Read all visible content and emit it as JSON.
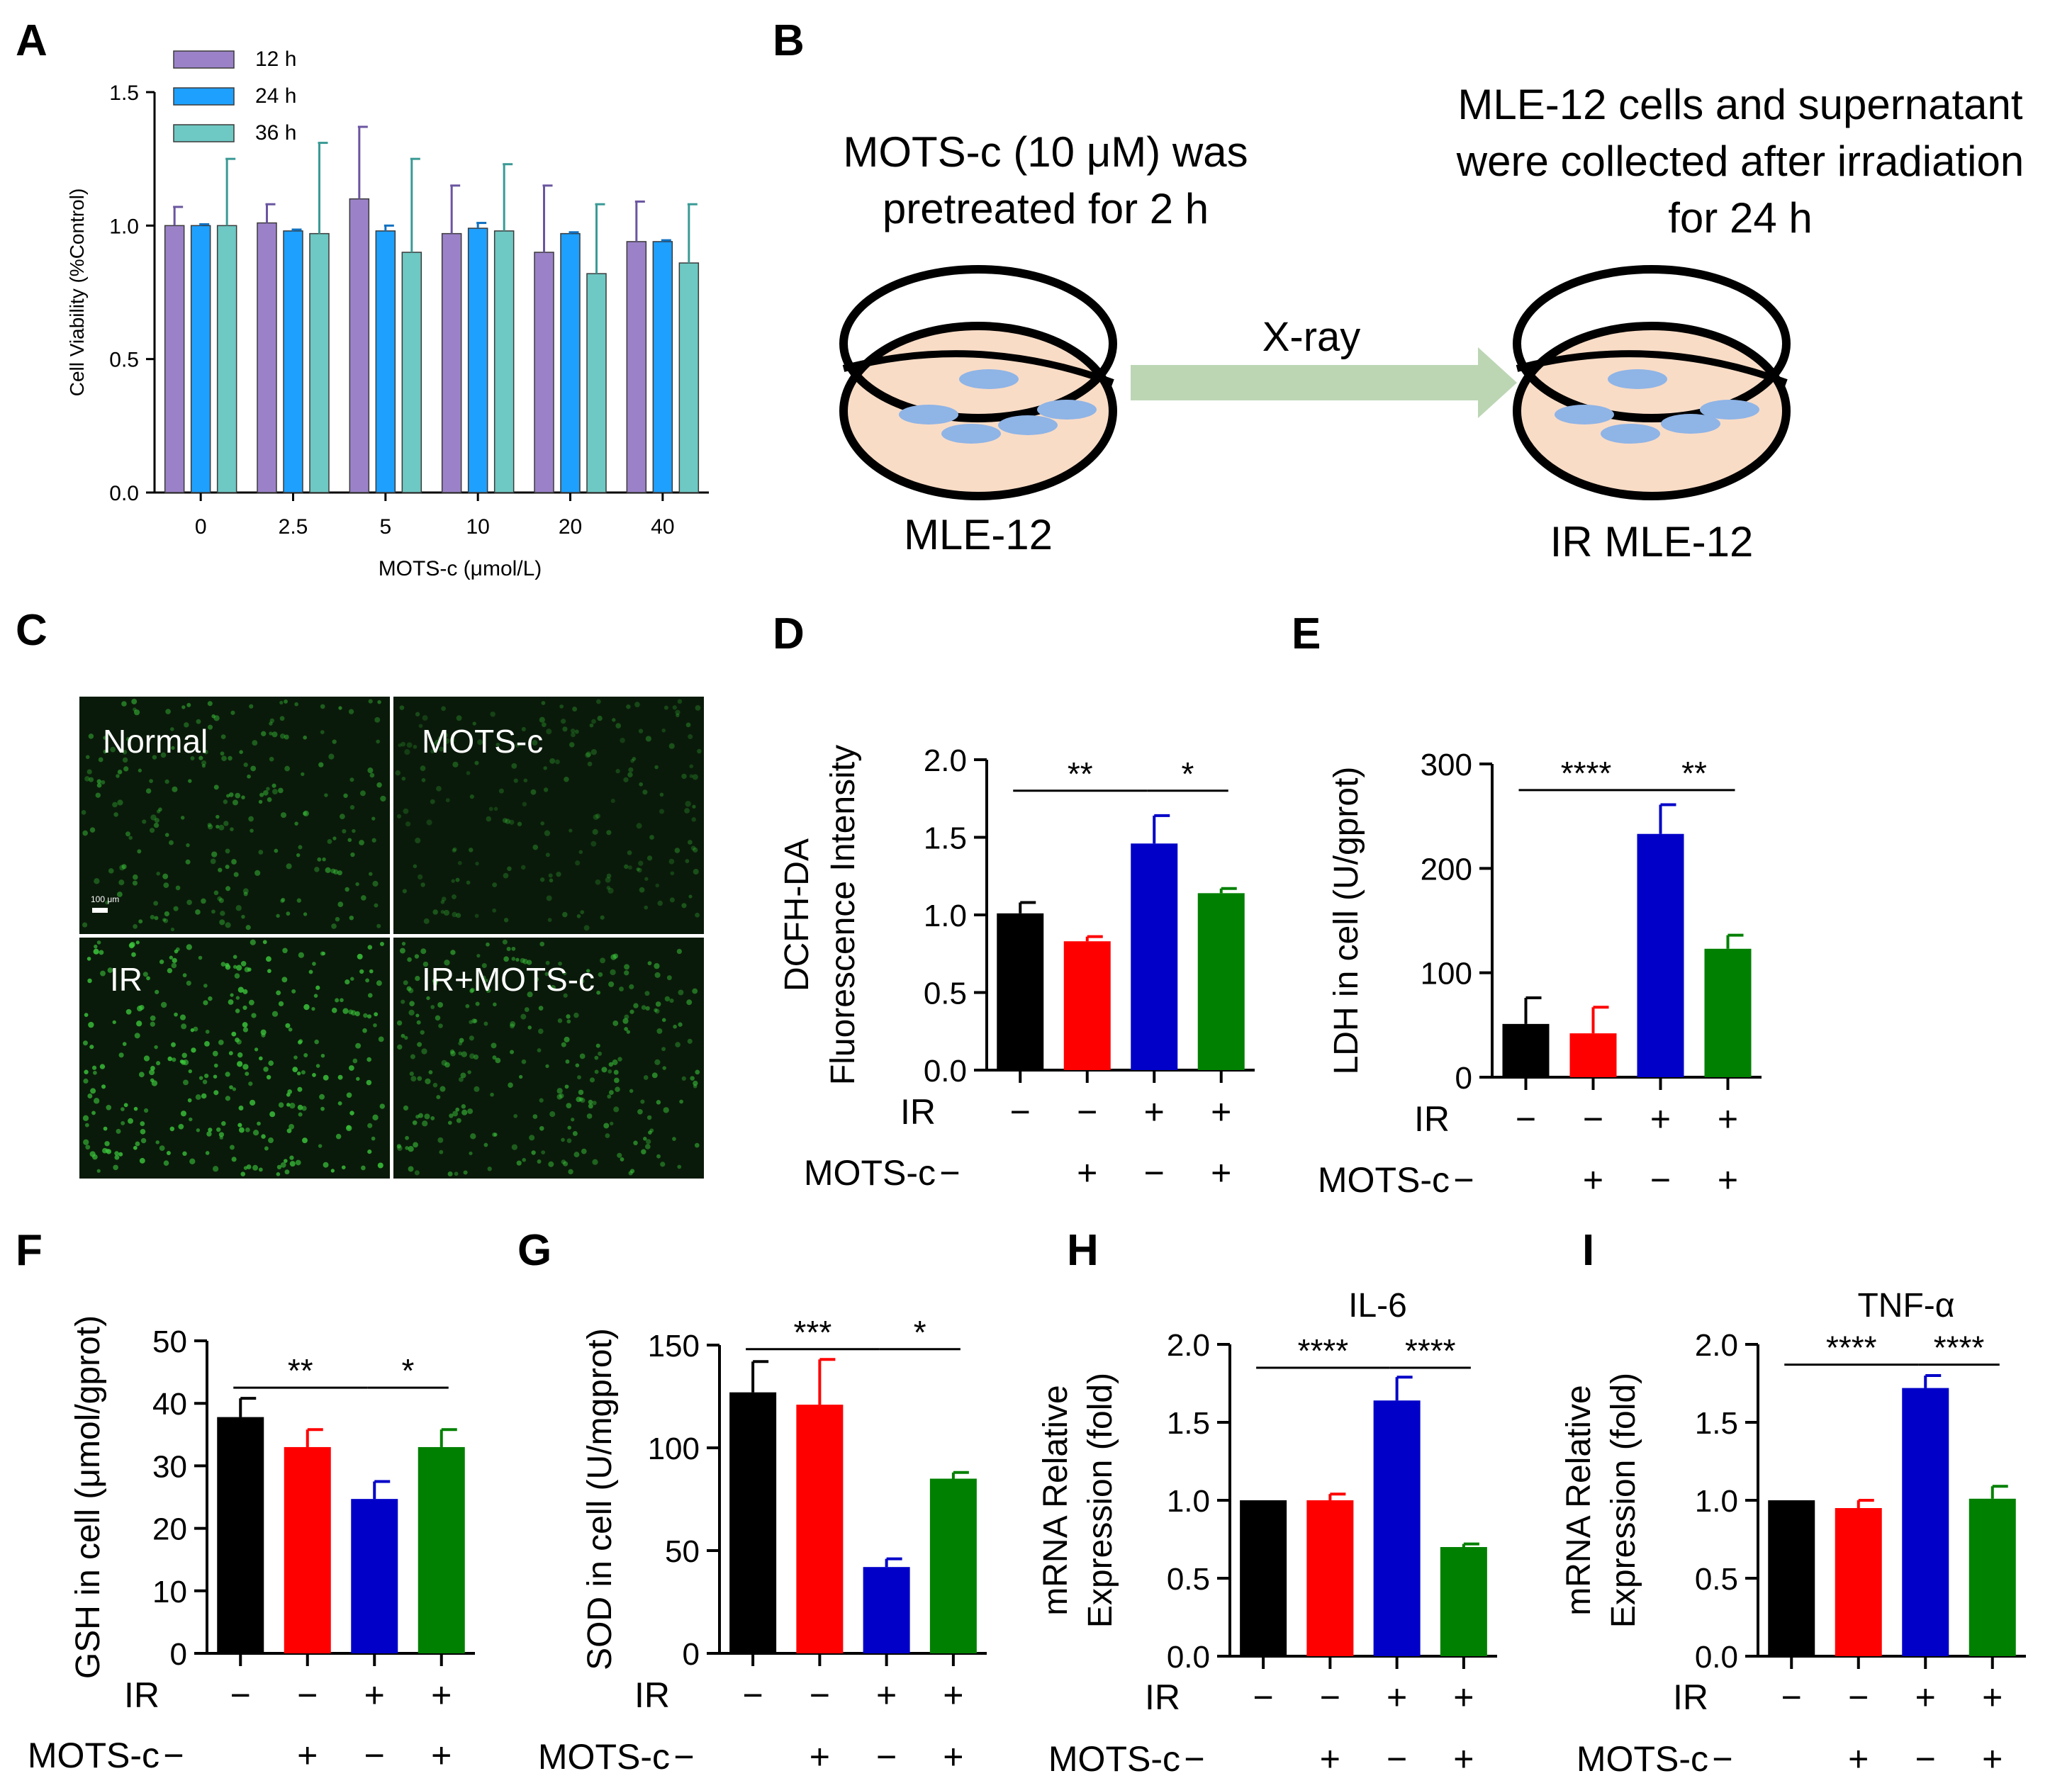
{
  "colors": {
    "black": "#000000",
    "red": "#ff0000",
    "blue": "#0000c8",
    "green": "#008000",
    "purple": "#9b82c8",
    "lightblue": "#1ea0ff",
    "teal": "#6ec8c3",
    "dish_fill": "#f9dcc6",
    "cell": "#8fb4e6",
    "arrow": "#bcd6b4",
    "micro_bg": "#0a1a0a",
    "micro_dot": "#3cc83c"
  },
  "panel_A": {
    "letter": "A",
    "chart_data": {
      "type": "bar",
      "title": "",
      "xlabel": "MOTS-c (μmol/L)",
      "ylabel": "Cell Viability (%Control)",
      "ylim": [
        0,
        1.5
      ],
      "yticks": [
        "0.0",
        "0.5",
        "1.0",
        "1.5"
      ],
      "categories": [
        "0",
        "2.5",
        "5",
        "10",
        "20",
        "40"
      ],
      "legend_position": "top-left",
      "series": [
        {
          "name": "12 h",
          "color": "#9b82c8",
          "values": [
            1.0,
            1.01,
            1.1,
            0.97,
            0.9,
            0.94
          ],
          "errors": [
            0.07,
            0.07,
            0.27,
            0.18,
            0.25,
            0.15
          ]
        },
        {
          "name": "24 h",
          "color": "#1ea0ff",
          "values": [
            1.0,
            0.98,
            0.98,
            0.99,
            0.97,
            0.94
          ],
          "errors": [
            0.005,
            0.005,
            0.02,
            0.02,
            0.005,
            0.005
          ]
        },
        {
          "name": "36 h",
          "color": "#6ec8c3",
          "values": [
            1.0,
            0.97,
            0.9,
            0.98,
            0.82,
            0.86
          ],
          "errors": [
            0.25,
            0.34,
            0.35,
            0.25,
            0.26,
            0.22
          ]
        }
      ]
    }
  },
  "panel_B": {
    "letter": "B",
    "pretreat_line1": "MOTS-c (10 μM) was",
    "pretreat_line2": "pretreated for 2 h",
    "collect_line1": "MLE-12 cells and supernatant",
    "collect_line2": "were collected after irradiation",
    "collect_line3": "for 24 h",
    "arrow_label": "X-ray",
    "left_dish_label": "MLE-12",
    "right_dish_label": "IR MLE-12"
  },
  "panel_C": {
    "letter": "C",
    "quadrants": [
      "Normal",
      "MOTS-c",
      "IR",
      "IR+MOTS-c"
    ],
    "scale_bar": "100 μm"
  },
  "condition_rows": {
    "ir_label": "IR",
    "mots_label": "MOTS-c",
    "ir_signs": [
      "−",
      "−",
      "+",
      "+"
    ],
    "mots_signs": [
      "−",
      "+",
      "−",
      "+"
    ]
  },
  "bar_panels": [
    {
      "letter": "D",
      "chart_data": {
        "type": "bar",
        "title": "",
        "ylabel": [
          "DCFH-DA",
          "Fluorescence Intensity"
        ],
        "ylim": [
          0,
          2.0
        ],
        "yticks": [
          "0.0",
          "0.5",
          "1.0",
          "1.5",
          "2.0"
        ],
        "ytick_values": [
          0,
          0.5,
          1.0,
          1.5,
          2.0
        ],
        "values": [
          1.01,
          0.83,
          1.46,
          1.14
        ],
        "errors": [
          0.07,
          0.03,
          0.18,
          0.03
        ],
        "sig": [
          {
            "from": 0,
            "to": 2,
            "label": "**",
            "y": 1.8
          },
          {
            "from": 2,
            "to": 3,
            "label": "*",
            "y": 1.8
          }
        ]
      }
    },
    {
      "letter": "E",
      "chart_data": {
        "type": "bar",
        "title": "",
        "ylabel": [
          "LDH in cell (U/gprot)"
        ],
        "ylim": [
          0,
          300
        ],
        "yticks": [
          "0",
          "100",
          "200",
          "300"
        ],
        "ytick_values": [
          0,
          100,
          200,
          300
        ],
        "values": [
          51,
          42,
          233,
          123
        ],
        "errors": [
          25,
          25,
          28,
          13
        ],
        "sig": [
          {
            "from": 0,
            "to": 2,
            "label": "****",
            "y": 275
          },
          {
            "from": 2,
            "to": 3,
            "label": "**",
            "y": 275
          }
        ]
      }
    },
    {
      "letter": "F",
      "chart_data": {
        "type": "bar",
        "title": "",
        "ylabel": [
          "GSH in cell (μmol/gprot)"
        ],
        "ylim": [
          0,
          50
        ],
        "yticks": [
          "0",
          "10",
          "20",
          "30",
          "40",
          "50"
        ],
        "ytick_values": [
          0,
          10,
          20,
          30,
          40,
          50
        ],
        "values": [
          37.8,
          33,
          24.7,
          33
        ],
        "errors": [
          3,
          2.8,
          2.8,
          2.8
        ],
        "sig": [
          {
            "from": 0,
            "to": 2,
            "label": "**",
            "y": 42.5
          },
          {
            "from": 2,
            "to": 3,
            "label": "*",
            "y": 42.5
          }
        ]
      }
    },
    {
      "letter": "G",
      "chart_data": {
        "type": "bar",
        "title": "",
        "ylabel": [
          "SOD in cell (U/mgprot)"
        ],
        "ylim": [
          0,
          150
        ],
        "yticks": [
          "0",
          "50",
          "100",
          "150"
        ],
        "ytick_values": [
          0,
          50,
          100,
          150
        ],
        "values": [
          127,
          121,
          42,
          85
        ],
        "errors": [
          15,
          22,
          4,
          3
        ],
        "sig": [
          {
            "from": 0,
            "to": 2,
            "label": "***",
            "y": 148
          },
          {
            "from": 2,
            "to": 3,
            "label": "*",
            "y": 148
          }
        ]
      }
    },
    {
      "letter": "H",
      "chart_data": {
        "type": "bar",
        "title": "IL-6",
        "ylabel": [
          "mRNA Relative",
          "Expression (fold)"
        ],
        "ylim": [
          0,
          2.0
        ],
        "yticks": [
          "0.0",
          "0.5",
          "1.0",
          "1.5",
          "2.0"
        ],
        "ytick_values": [
          0,
          0.5,
          1.0,
          1.5,
          2.0
        ],
        "values": [
          1.0,
          1.0,
          1.64,
          0.7
        ],
        "errors": [
          0,
          0.04,
          0.15,
          0.02
        ],
        "sig": [
          {
            "from": 0,
            "to": 2,
            "label": "****",
            "y": 1.85
          },
          {
            "from": 2,
            "to": 3,
            "label": "****",
            "y": 1.85
          }
        ]
      }
    },
    {
      "letter": "I",
      "chart_data": {
        "type": "bar",
        "title": "TNF-α",
        "ylabel": [
          "mRNA Relative",
          "Expression (fold)"
        ],
        "ylim": [
          0,
          2.0
        ],
        "yticks": [
          "0.0",
          "0.5",
          "1.0",
          "1.5",
          "2.0"
        ],
        "ytick_values": [
          0,
          0.5,
          1.0,
          1.5,
          2.0
        ],
        "values": [
          1.0,
          0.95,
          1.72,
          1.01
        ],
        "errors": [
          0,
          0.05,
          0.08,
          0.08
        ],
        "sig": [
          {
            "from": 0,
            "to": 2,
            "label": "****",
            "y": 1.87
          },
          {
            "from": 2,
            "to": 3,
            "label": "****",
            "y": 1.87
          }
        ]
      }
    }
  ]
}
